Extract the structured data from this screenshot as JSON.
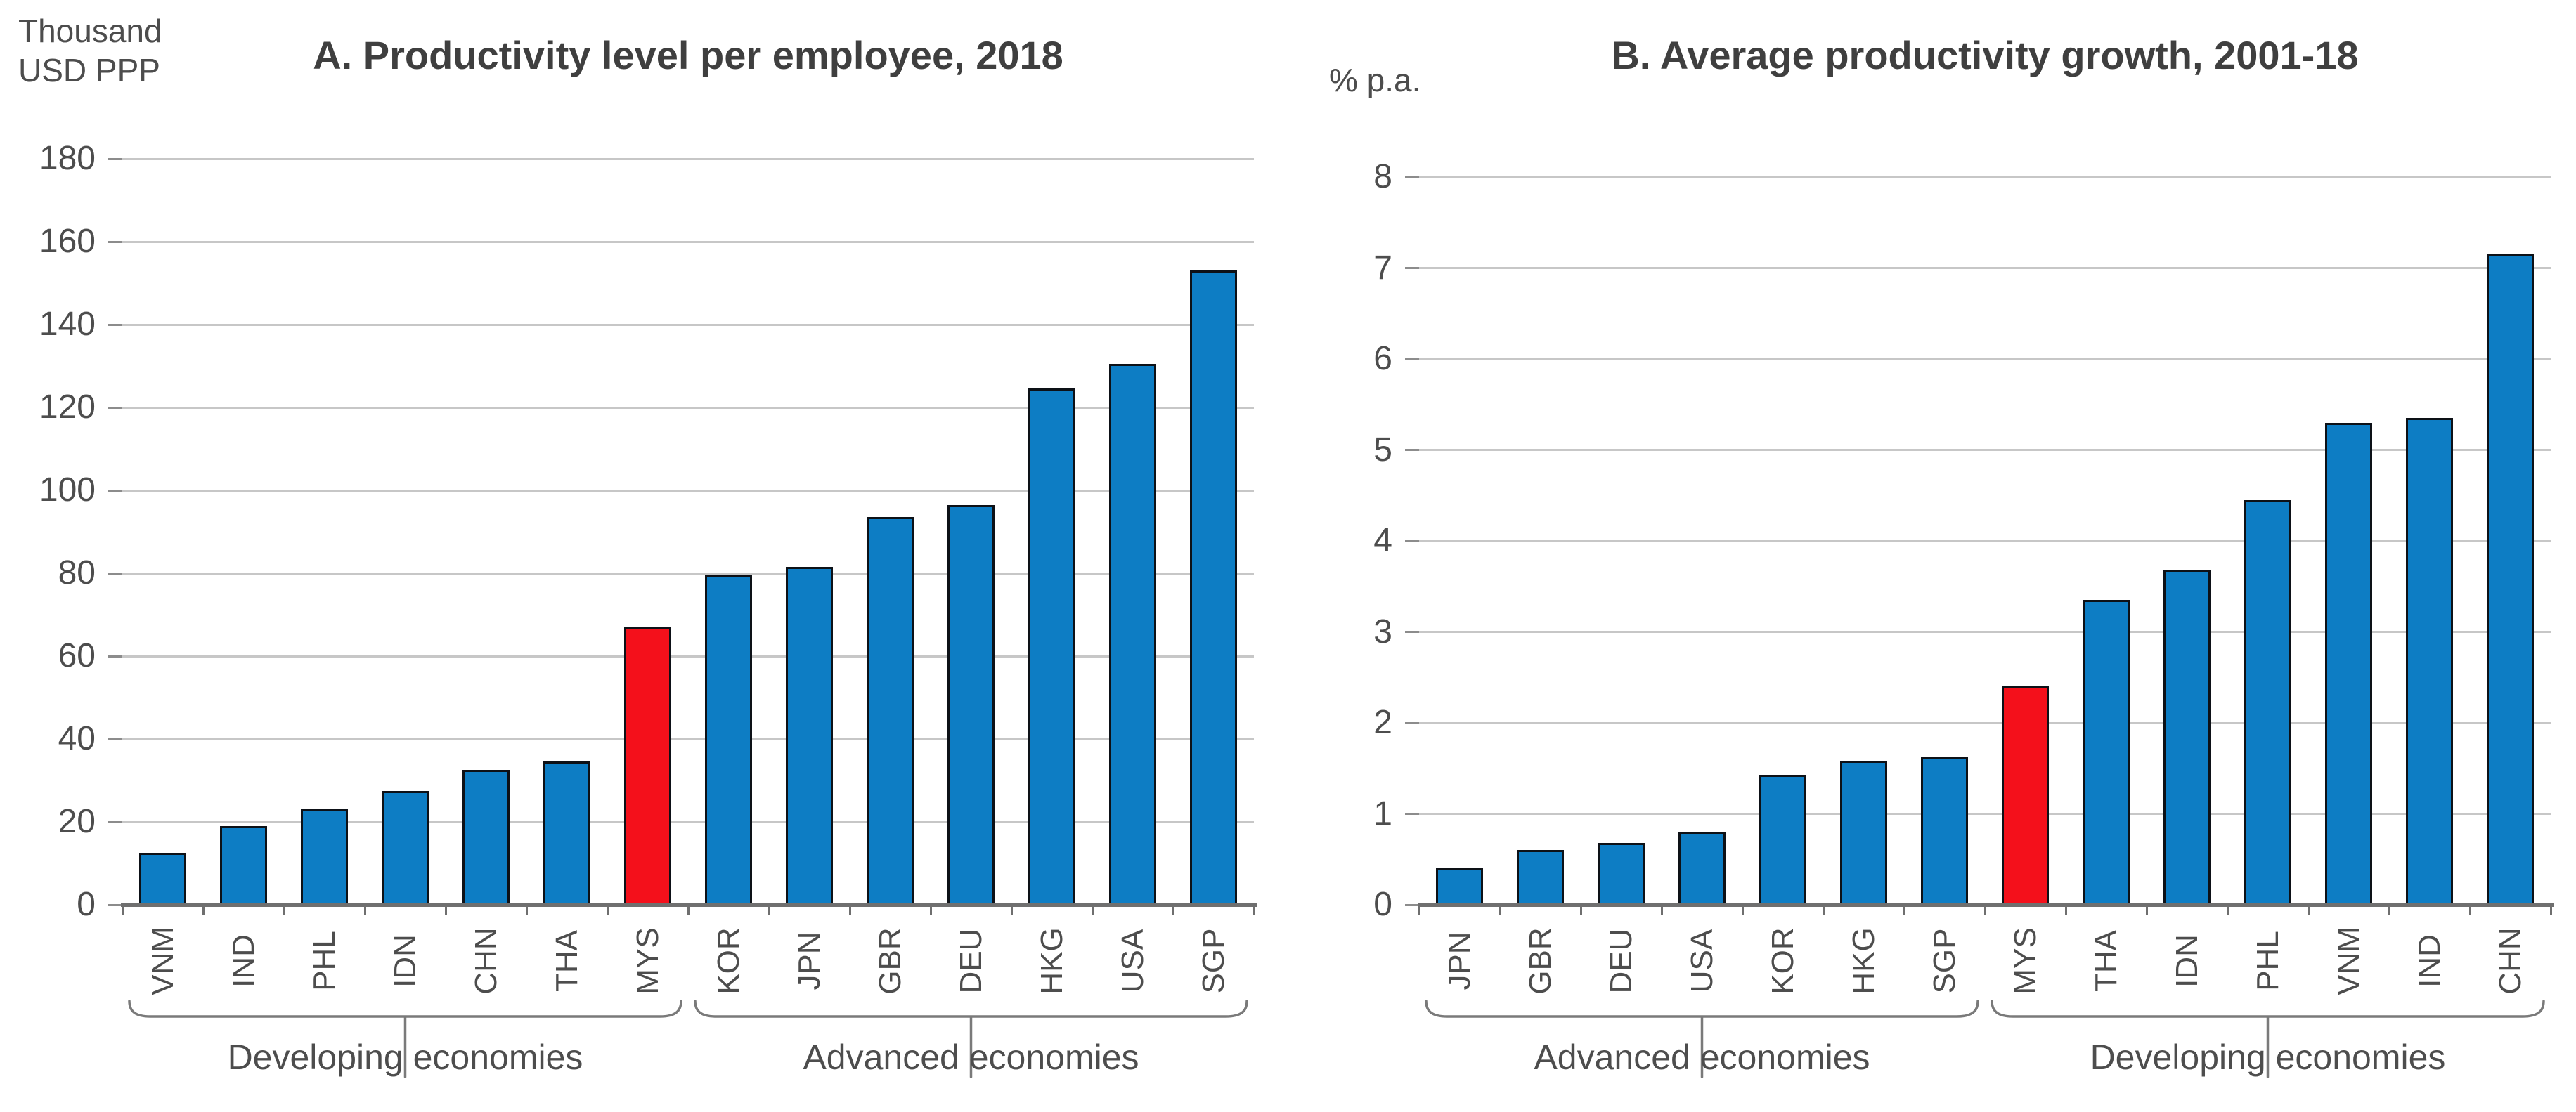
{
  "colors": {
    "bar_blue": "#0d7dc4",
    "bar_red": "#f4101b",
    "bar_border": "#0d1117",
    "gridline": "#c7c7c7",
    "axis_line": "#6f6f6f",
    "tick": "#8c8c8c",
    "text": "#4d4d4d",
    "title_text": "#3f3f3f",
    "brace": "#7a7a7a"
  },
  "chart_data": [
    {
      "type": "bar",
      "panel": "A",
      "title": "A. Productivity level per employee, 2018",
      "ylabel": "Thousand USD PPP",
      "unit_label_lines": [
        "Thousand",
        "USD PPP"
      ],
      "xlabel": "",
      "ylim": [
        0,
        180
      ],
      "ytick_step": 20,
      "grid": "horizontal",
      "legend_position": "none",
      "categories": [
        "VNM",
        "IND",
        "PHL",
        "IDN",
        "CHN",
        "THA",
        "MYS",
        "KOR",
        "JPN",
        "GBR",
        "DEU",
        "HKG",
        "USA",
        "SGP"
      ],
      "values": [
        12.5,
        19,
        23,
        27.5,
        32.5,
        34.5,
        67,
        79.5,
        81.5,
        93.5,
        96.5,
        124.5,
        130.5,
        153
      ],
      "highlight_category": "MYS",
      "groups": [
        {
          "label": "Developing economies",
          "from": 0,
          "to": 6
        },
        {
          "label": "Advanced economies",
          "from": 7,
          "to": 13
        }
      ]
    },
    {
      "type": "bar",
      "panel": "B",
      "title": "B. Average productivity growth, 2001-18",
      "ylabel": "% p.a.",
      "unit_label_lines": [
        "% p.a."
      ],
      "xlabel": "",
      "ylim": [
        0,
        8
      ],
      "ytick_step": 1,
      "grid": "horizontal",
      "legend_position": "none",
      "categories": [
        "JPN",
        "GBR",
        "DEU",
        "USA",
        "KOR",
        "HKG",
        "SGP",
        "MYS",
        "THA",
        "IDN",
        "PHL",
        "VNM",
        "IND",
        "CHN"
      ],
      "values": [
        0.4,
        0.6,
        0.68,
        0.8,
        1.43,
        1.58,
        1.62,
        2.4,
        3.35,
        3.68,
        4.45,
        5.3,
        5.35,
        7.15
      ],
      "highlight_category": "MYS",
      "groups": [
        {
          "label": "Advanced economies",
          "from": 0,
          "to": 6
        },
        {
          "label": "Developing economies",
          "from": 7,
          "to": 13
        }
      ]
    }
  ]
}
